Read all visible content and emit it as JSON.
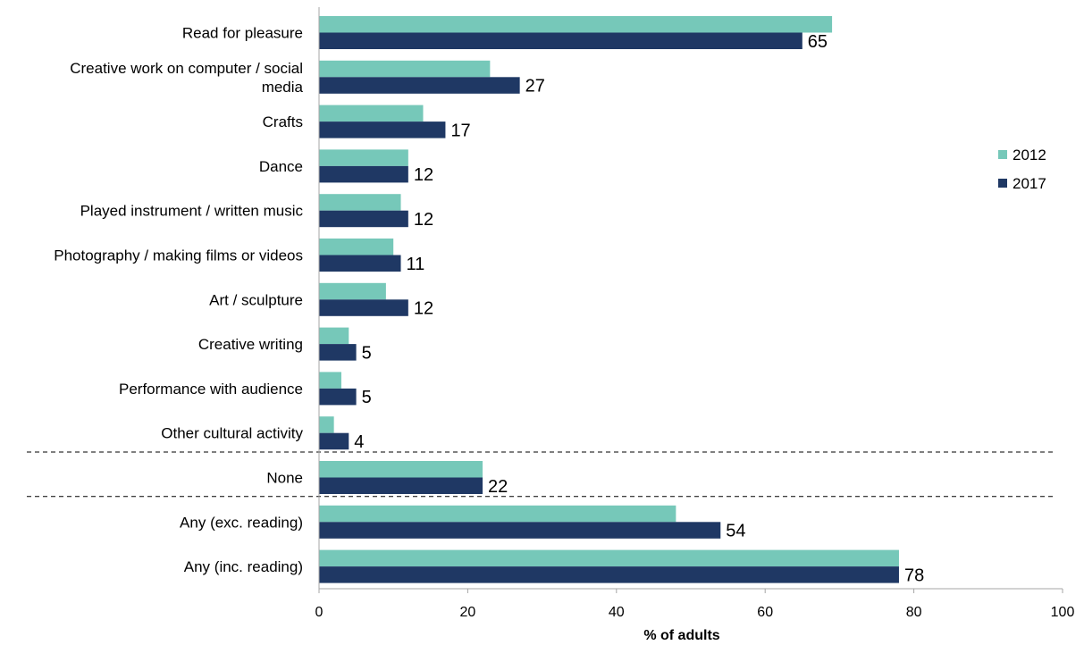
{
  "chart_data": {
    "type": "bar",
    "orientation": "horizontal",
    "categories": [
      "Read for pleasure",
      "Creative work on computer / social media",
      "Crafts",
      "Dance",
      "Played instrument / written music",
      "Photography / making films or videos",
      "Art / sculpture",
      "Creative writing",
      "Performance with audience",
      "Other cultural activity",
      "None",
      "Any (exc. reading)",
      "Any (inc. reading)"
    ],
    "category_lines": [
      [
        "Read for pleasure"
      ],
      [
        "Creative work on computer / social",
        "media"
      ],
      [
        "Crafts"
      ],
      [
        "Dance"
      ],
      [
        "Played instrument / written music"
      ],
      [
        "Photography / making films or videos"
      ],
      [
        "Art / sculpture"
      ],
      [
        "Creative writing"
      ],
      [
        "Performance with audience"
      ],
      [
        "Other cultural activity"
      ],
      [
        "None"
      ],
      [
        "Any (exc. reading)"
      ],
      [
        "Any (inc. reading)"
      ]
    ],
    "series": [
      {
        "name": "2012",
        "color": "#76c8b9",
        "values": [
          69,
          23,
          14,
          12,
          11,
          10,
          9,
          4,
          3,
          2,
          22,
          48,
          78
        ],
        "labeled": false
      },
      {
        "name": "2017",
        "color": "#1f3864",
        "values": [
          65,
          27,
          17,
          12,
          12,
          11,
          12,
          5,
          5,
          4,
          22,
          54,
          78
        ],
        "labels": [
          "65",
          "27",
          "17",
          "12",
          "12",
          "11",
          "12",
          "5",
          "5",
          "4",
          "22",
          "54",
          "78"
        ],
        "labeled": true
      }
    ],
    "xlabel": "% of adults",
    "xlim": [
      0,
      100
    ],
    "xticks": [
      "0",
      "20",
      "40",
      "60",
      "80",
      "100"
    ],
    "xtick_values": [
      0,
      20,
      40,
      60,
      80,
      100
    ],
    "separators_after": [
      "Other cultural activity",
      "None"
    ],
    "grid": false,
    "legend_position": "right"
  }
}
